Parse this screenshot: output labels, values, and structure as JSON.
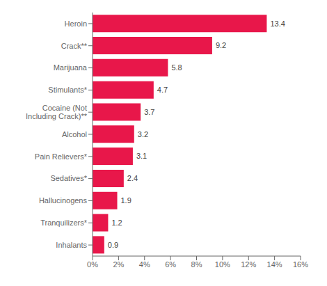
{
  "chart_data": {
    "type": "bar",
    "orientation": "horizontal",
    "categories": [
      "Inhalants",
      "Tranquilizers*",
      "Hallucinogens",
      "Sedatives*",
      "Pain Relievers*",
      "Alcohol",
      "Cocaine (Not\nIncluding Crack)**",
      "Stimulants*",
      "Marijuana",
      "Crack**",
      "Heroin"
    ],
    "values": [
      0.9,
      1.2,
      1.9,
      2.4,
      3.1,
      3.2,
      3.7,
      4.7,
      5.8,
      9.2,
      13.4
    ],
    "color": "#E8174A",
    "xlim": [
      0,
      16
    ],
    "xticks": [
      {
        "value": 0,
        "label": "0%"
      },
      {
        "value": 2,
        "label": "2%"
      },
      {
        "value": 4,
        "label": "4%"
      },
      {
        "value": 6,
        "label": "6%"
      },
      {
        "value": 8,
        "label": "8%"
      },
      {
        "value": 10,
        "label": "10%"
      },
      {
        "value": 12,
        "label": "12%"
      },
      {
        "value": 14,
        "label": "14%"
      },
      {
        "value": 16,
        "label": "16%"
      }
    ],
    "data_labels": true,
    "grid": false
  }
}
